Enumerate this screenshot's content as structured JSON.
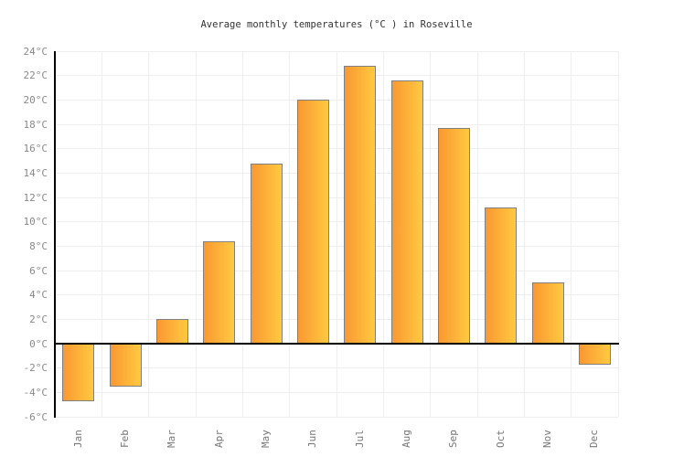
{
  "title": "Average monthly temperatures (°C ) in Roseville",
  "colors": {
    "background": "#ffffff",
    "bar_gradient_start": "#FA9832",
    "bar_gradient_end": "#FFC940",
    "bar_border": "#808080",
    "grid": "#eeeeee",
    "axis": "#000000",
    "y_tick_label": "#888888",
    "x_tick_label": "#777777",
    "title_color": "#333333"
  },
  "chart_data": {
    "type": "bar",
    "title": "Average monthly temperatures (°C ) in Roseville",
    "categories": [
      "Jan",
      "Feb",
      "Mar",
      "Apr",
      "May",
      "Jun",
      "Jul",
      "Aug",
      "Sep",
      "Oct",
      "Nov",
      "Dec"
    ],
    "values": [
      -4.7,
      -3.5,
      2,
      8.4,
      14.8,
      20,
      22.8,
      21.6,
      17.7,
      11.2,
      5,
      -1.7
    ],
    "unit": "°C",
    "xlabel": "",
    "ylabel": "",
    "ylim": [
      -6,
      24
    ],
    "ytick_step": 2,
    "ytick_suffix": "°C",
    "grid": true,
    "legend": false,
    "zero_line": true
  }
}
